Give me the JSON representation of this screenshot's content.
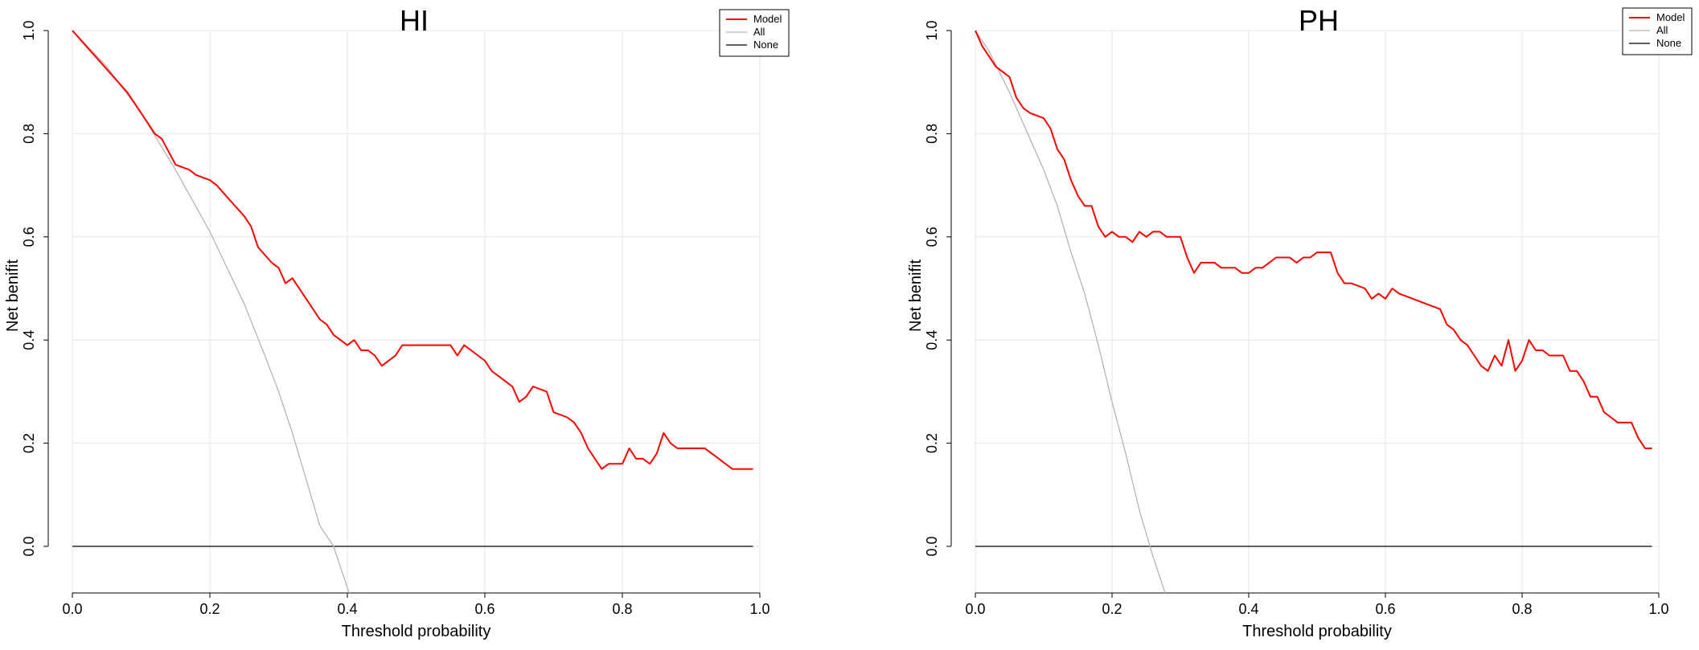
{
  "chart_data": [
    {
      "type": "line",
      "title": "HI",
      "xlabel": "Threshold probability",
      "ylabel": "Net benifit",
      "xlim": [
        0,
        1
      ],
      "ylim": [
        -0.09,
        1.0
      ],
      "x_ticks": [
        "0.0",
        "0.2",
        "0.4",
        "0.6",
        "0.8",
        "1.0"
      ],
      "y_ticks": [
        "0.0",
        "0.2",
        "0.4",
        "0.6",
        "0.8",
        "1.0"
      ],
      "grid": true,
      "legend_position": "top-right",
      "legend": [
        "Model",
        "All",
        "None"
      ],
      "series": [
        {
          "name": "Model",
          "color": "#ff0000",
          "points": [
            [
              0.0,
              1.0
            ],
            [
              0.02,
              0.97
            ],
            [
              0.04,
              0.94
            ],
            [
              0.06,
              0.91
            ],
            [
              0.08,
              0.88
            ],
            [
              0.1,
              0.84
            ],
            [
              0.12,
              0.8
            ],
            [
              0.13,
              0.79
            ],
            [
              0.15,
              0.74
            ],
            [
              0.17,
              0.73
            ],
            [
              0.18,
              0.72
            ],
            [
              0.2,
              0.71
            ],
            [
              0.21,
              0.7
            ],
            [
              0.23,
              0.67
            ],
            [
              0.25,
              0.64
            ],
            [
              0.26,
              0.62
            ],
            [
              0.27,
              0.58
            ],
            [
              0.29,
              0.55
            ],
            [
              0.3,
              0.54
            ],
            [
              0.31,
              0.51
            ],
            [
              0.32,
              0.52
            ],
            [
              0.34,
              0.48
            ],
            [
              0.36,
              0.44
            ],
            [
              0.37,
              0.43
            ],
            [
              0.38,
              0.41
            ],
            [
              0.39,
              0.4
            ],
            [
              0.4,
              0.39
            ],
            [
              0.41,
              0.4
            ],
            [
              0.42,
              0.38
            ],
            [
              0.43,
              0.38
            ],
            [
              0.44,
              0.37
            ],
            [
              0.45,
              0.35
            ],
            [
              0.46,
              0.36
            ],
            [
              0.47,
              0.37
            ],
            [
              0.48,
              0.39
            ],
            [
              0.5,
              0.39
            ],
            [
              0.51,
              0.39
            ],
            [
              0.52,
              0.39
            ],
            [
              0.53,
              0.39
            ],
            [
              0.54,
              0.39
            ],
            [
              0.55,
              0.39
            ],
            [
              0.56,
              0.37
            ],
            [
              0.57,
              0.39
            ],
            [
              0.58,
              0.38
            ],
            [
              0.59,
              0.37
            ],
            [
              0.6,
              0.36
            ],
            [
              0.61,
              0.34
            ],
            [
              0.63,
              0.32
            ],
            [
              0.64,
              0.31
            ],
            [
              0.65,
              0.28
            ],
            [
              0.66,
              0.29
            ],
            [
              0.67,
              0.31
            ],
            [
              0.69,
              0.3
            ],
            [
              0.7,
              0.26
            ],
            [
              0.72,
              0.25
            ],
            [
              0.73,
              0.24
            ],
            [
              0.74,
              0.22
            ],
            [
              0.75,
              0.19
            ],
            [
              0.77,
              0.15
            ],
            [
              0.78,
              0.16
            ],
            [
              0.79,
              0.16
            ],
            [
              0.8,
              0.16
            ],
            [
              0.81,
              0.19
            ],
            [
              0.82,
              0.17
            ],
            [
              0.83,
              0.17
            ],
            [
              0.84,
              0.16
            ],
            [
              0.85,
              0.18
            ],
            [
              0.86,
              0.22
            ],
            [
              0.87,
              0.2
            ],
            [
              0.88,
              0.19
            ],
            [
              0.89,
              0.19
            ],
            [
              0.92,
              0.19
            ],
            [
              0.93,
              0.18
            ],
            [
              0.96,
              0.15
            ],
            [
              0.99,
              0.15
            ]
          ]
        },
        {
          "name": "All",
          "color": "#b4b4b4",
          "points": [
            [
              0.0,
              1.0
            ],
            [
              0.05,
              0.93
            ],
            [
              0.1,
              0.84
            ],
            [
              0.15,
              0.73
            ],
            [
              0.2,
              0.61
            ],
            [
              0.25,
              0.47
            ],
            [
              0.28,
              0.37
            ],
            [
              0.3,
              0.3
            ],
            [
              0.32,
              0.22
            ],
            [
              0.34,
              0.13
            ],
            [
              0.36,
              0.04
            ],
            [
              0.38,
              0.0
            ],
            [
              0.39,
              -0.04
            ],
            [
              0.4,
              -0.08
            ],
            [
              0.41,
              -0.12
            ]
          ]
        },
        {
          "name": "None",
          "color": "#000000",
          "points": [
            [
              0.0,
              0.0
            ],
            [
              0.99,
              0.0
            ]
          ]
        }
      ]
    },
    {
      "type": "line",
      "title": "PH",
      "xlabel": "Threshold probability",
      "ylabel": "Net benifit",
      "xlim": [
        0,
        1
      ],
      "ylim": [
        -0.09,
        1.0
      ],
      "x_ticks": [
        "0.0",
        "0.2",
        "0.4",
        "0.6",
        "0.8",
        "1.0"
      ],
      "y_ticks": [
        "0.0",
        "0.2",
        "0.4",
        "0.6",
        "0.8",
        "1.0"
      ],
      "grid": true,
      "legend_position": "top-right",
      "legend": [
        "Model",
        "All",
        "None"
      ],
      "series": [
        {
          "name": "Model",
          "color": "#ff0000",
          "points": [
            [
              0.0,
              1.0
            ],
            [
              0.01,
              0.97
            ],
            [
              0.02,
              0.95
            ],
            [
              0.03,
              0.93
            ],
            [
              0.05,
              0.91
            ],
            [
              0.06,
              0.87
            ],
            [
              0.07,
              0.85
            ],
            [
              0.08,
              0.84
            ],
            [
              0.1,
              0.83
            ],
            [
              0.11,
              0.81
            ],
            [
              0.12,
              0.77
            ],
            [
              0.13,
              0.75
            ],
            [
              0.14,
              0.71
            ],
            [
              0.15,
              0.68
            ],
            [
              0.16,
              0.66
            ],
            [
              0.17,
              0.66
            ],
            [
              0.18,
              0.62
            ],
            [
              0.19,
              0.6
            ],
            [
              0.2,
              0.61
            ],
            [
              0.21,
              0.6
            ],
            [
              0.22,
              0.6
            ],
            [
              0.23,
              0.59
            ],
            [
              0.24,
              0.61
            ],
            [
              0.25,
              0.6
            ],
            [
              0.26,
              0.61
            ],
            [
              0.27,
              0.61
            ],
            [
              0.28,
              0.6
            ],
            [
              0.29,
              0.6
            ],
            [
              0.3,
              0.6
            ],
            [
              0.31,
              0.56
            ],
            [
              0.32,
              0.53
            ],
            [
              0.33,
              0.55
            ],
            [
              0.35,
              0.55
            ],
            [
              0.36,
              0.54
            ],
            [
              0.38,
              0.54
            ],
            [
              0.39,
              0.53
            ],
            [
              0.4,
              0.53
            ],
            [
              0.41,
              0.54
            ],
            [
              0.42,
              0.54
            ],
            [
              0.43,
              0.55
            ],
            [
              0.44,
              0.56
            ],
            [
              0.45,
              0.56
            ],
            [
              0.46,
              0.56
            ],
            [
              0.47,
              0.55
            ],
            [
              0.48,
              0.56
            ],
            [
              0.49,
              0.56
            ],
            [
              0.5,
              0.57
            ],
            [
              0.51,
              0.57
            ],
            [
              0.52,
              0.57
            ],
            [
              0.53,
              0.53
            ],
            [
              0.54,
              0.51
            ],
            [
              0.55,
              0.51
            ],
            [
              0.57,
              0.5
            ],
            [
              0.58,
              0.48
            ],
            [
              0.59,
              0.49
            ],
            [
              0.6,
              0.48
            ],
            [
              0.61,
              0.5
            ],
            [
              0.62,
              0.49
            ],
            [
              0.64,
              0.48
            ],
            [
              0.66,
              0.47
            ],
            [
              0.68,
              0.46
            ],
            [
              0.69,
              0.43
            ],
            [
              0.7,
              0.42
            ],
            [
              0.71,
              0.4
            ],
            [
              0.72,
              0.39
            ],
            [
              0.73,
              0.37
            ],
            [
              0.74,
              0.35
            ],
            [
              0.75,
              0.34
            ],
            [
              0.76,
              0.37
            ],
            [
              0.77,
              0.35
            ],
            [
              0.78,
              0.4
            ],
            [
              0.79,
              0.34
            ],
            [
              0.8,
              0.36
            ],
            [
              0.81,
              0.4
            ],
            [
              0.82,
              0.38
            ],
            [
              0.83,
              0.38
            ],
            [
              0.84,
              0.37
            ],
            [
              0.86,
              0.37
            ],
            [
              0.87,
              0.34
            ],
            [
              0.88,
              0.34
            ],
            [
              0.89,
              0.32
            ],
            [
              0.9,
              0.29
            ],
            [
              0.91,
              0.29
            ],
            [
              0.92,
              0.26
            ],
            [
              0.93,
              0.25
            ],
            [
              0.94,
              0.24
            ],
            [
              0.96,
              0.24
            ],
            [
              0.97,
              0.21
            ],
            [
              0.98,
              0.19
            ],
            [
              0.99,
              0.19
            ]
          ]
        },
        {
          "name": "All",
          "color": "#b4b4b4",
          "points": [
            [
              0.0,
              1.0
            ],
            [
              0.02,
              0.96
            ],
            [
              0.05,
              0.88
            ],
            [
              0.08,
              0.79
            ],
            [
              0.1,
              0.73
            ],
            [
              0.12,
              0.66
            ],
            [
              0.14,
              0.57
            ],
            [
              0.16,
              0.49
            ],
            [
              0.18,
              0.39
            ],
            [
              0.2,
              0.28
            ],
            [
              0.22,
              0.18
            ],
            [
              0.24,
              0.07
            ],
            [
              0.26,
              -0.02
            ],
            [
              0.27,
              -0.06
            ],
            [
              0.28,
              -0.1
            ]
          ]
        },
        {
          "name": "None",
          "color": "#000000",
          "points": [
            [
              0.0,
              0.0
            ],
            [
              0.99,
              0.0
            ]
          ]
        }
      ]
    }
  ]
}
